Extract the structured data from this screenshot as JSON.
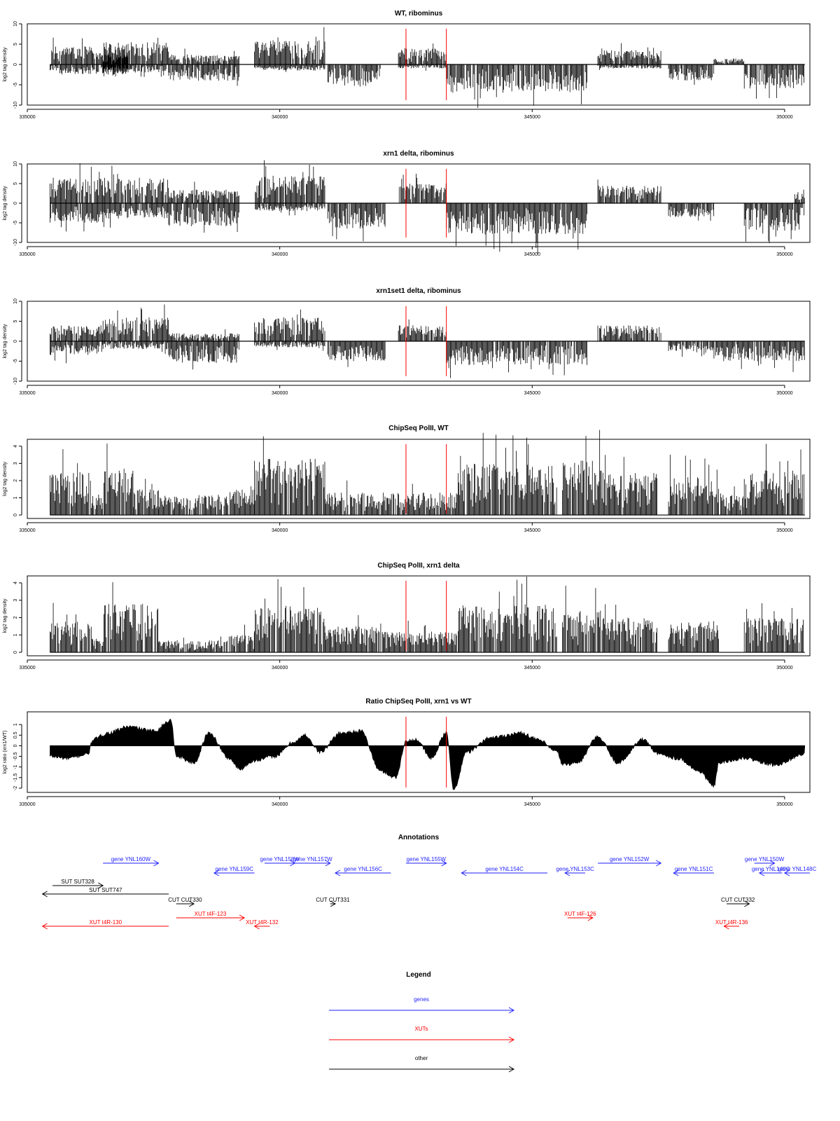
{
  "chart_data": [
    {
      "type": "bar",
      "title": "WT, ribominus",
      "ylabel": "log2 tag density",
      "xlim": [
        335000,
        350500
      ],
      "ylim": [
        -10,
        10
      ],
      "xticks": [
        335000,
        340000,
        345000,
        350000
      ],
      "yticks": [
        -10,
        -5,
        0,
        5,
        10
      ],
      "vlines": [
        342500,
        343300
      ],
      "blocks": [
        {
          "start": 335450,
          "end": 336300,
          "sign": 1,
          "amp": 4.5
        },
        {
          "start": 335450,
          "end": 336300,
          "sign": -1,
          "amp": 2.5
        },
        {
          "start": 336300,
          "end": 337000,
          "sign": 1,
          "amp": 3
        },
        {
          "start": 336300,
          "end": 337000,
          "sign": -1,
          "amp": 2.5
        },
        {
          "start": 336500,
          "end": 337800,
          "sign": 1,
          "amp": 5.5
        },
        {
          "start": 336500,
          "end": 337800,
          "sign": -1,
          "amp": 2
        },
        {
          "start": 337800,
          "end": 339200,
          "sign": 1,
          "amp": 2.5
        },
        {
          "start": 337800,
          "end": 339200,
          "sign": -1,
          "amp": 4
        },
        {
          "start": 339500,
          "end": 340900,
          "sign": 1,
          "amp": 6
        },
        {
          "start": 339500,
          "end": 340900,
          "sign": -1,
          "amp": 1.5
        },
        {
          "start": 340950,
          "end": 342000,
          "sign": -1,
          "amp": 5.5
        },
        {
          "start": 342350,
          "end": 343300,
          "sign": 1,
          "amp": 4
        },
        {
          "start": 342350,
          "end": 343300,
          "sign": -1,
          "amp": 1
        },
        {
          "start": 343300,
          "end": 346100,
          "sign": -1,
          "amp": 7
        },
        {
          "start": 346300,
          "end": 347550,
          "sign": 1,
          "amp": 3.5
        },
        {
          "start": 346300,
          "end": 347550,
          "sign": -1,
          "amp": 1
        },
        {
          "start": 347700,
          "end": 348600,
          "sign": -1,
          "amp": 4
        },
        {
          "start": 348600,
          "end": 349200,
          "sign": 1,
          "amp": 1.5
        },
        {
          "start": 349200,
          "end": 350400,
          "sign": -1,
          "amp": 6
        }
      ]
    },
    {
      "type": "bar",
      "title": "xrn1 delta, ribominus",
      "ylabel": "log2 tag density",
      "xlim": [
        335000,
        350500
      ],
      "ylim": [
        -10,
        10
      ],
      "xticks": [
        335000,
        340000,
        345000,
        350000
      ],
      "yticks": [
        -10,
        -5,
        0,
        5,
        10
      ],
      "vlines": [
        342500,
        343300
      ],
      "blocks": [
        {
          "start": 335450,
          "end": 336500,
          "sign": 1,
          "amp": 6.5
        },
        {
          "start": 335450,
          "end": 336500,
          "sign": -1,
          "amp": 5
        },
        {
          "start": 336500,
          "end": 337800,
          "sign": 1,
          "amp": 6.5
        },
        {
          "start": 336500,
          "end": 337800,
          "sign": -1,
          "amp": 4
        },
        {
          "start": 337800,
          "end": 339200,
          "sign": 1,
          "amp": 3.5
        },
        {
          "start": 337800,
          "end": 339200,
          "sign": -1,
          "amp": 6
        },
        {
          "start": 339500,
          "end": 340900,
          "sign": 1,
          "amp": 7
        },
        {
          "start": 339500,
          "end": 340900,
          "sign": -1,
          "amp": 2
        },
        {
          "start": 340950,
          "end": 342100,
          "sign": -1,
          "amp": 6.5
        },
        {
          "start": 342350,
          "end": 343300,
          "sign": 1,
          "amp": 5
        },
        {
          "start": 343300,
          "end": 346100,
          "sign": -1,
          "amp": 8
        },
        {
          "start": 346300,
          "end": 347550,
          "sign": 1,
          "amp": 4.5
        },
        {
          "start": 347700,
          "end": 348600,
          "sign": -1,
          "amp": 3.5
        },
        {
          "start": 349200,
          "end": 350400,
          "sign": -1,
          "amp": 7
        },
        {
          "start": 350200,
          "end": 350400,
          "sign": 1,
          "amp": 2.5
        }
      ]
    },
    {
      "type": "bar",
      "title": "xrn1set1 delta, ribominus",
      "ylabel": "log2 tag density",
      "xlim": [
        335000,
        350500
      ],
      "ylim": [
        -10,
        10
      ],
      "xticks": [
        335000,
        340000,
        345000,
        350000
      ],
      "yticks": [
        -10,
        -5,
        0,
        5,
        10
      ],
      "vlines": [
        342500,
        343300
      ],
      "blocks": [
        {
          "start": 335450,
          "end": 336500,
          "sign": 1,
          "amp": 4
        },
        {
          "start": 335450,
          "end": 336500,
          "sign": -1,
          "amp": 3.5
        },
        {
          "start": 336500,
          "end": 337800,
          "sign": 1,
          "amp": 6
        },
        {
          "start": 336500,
          "end": 337800,
          "sign": -1,
          "amp": 2
        },
        {
          "start": 337800,
          "end": 339200,
          "sign": 1,
          "amp": 2
        },
        {
          "start": 337800,
          "end": 339200,
          "sign": -1,
          "amp": 5.5
        },
        {
          "start": 339500,
          "end": 340900,
          "sign": 1,
          "amp": 6
        },
        {
          "start": 339500,
          "end": 340900,
          "sign": -1,
          "amp": 1.5
        },
        {
          "start": 340950,
          "end": 342100,
          "sign": -1,
          "amp": 5
        },
        {
          "start": 342350,
          "end": 343300,
          "sign": 1,
          "amp": 4
        },
        {
          "start": 343300,
          "end": 346100,
          "sign": -1,
          "amp": 6
        },
        {
          "start": 346300,
          "end": 347550,
          "sign": 1,
          "amp": 4
        },
        {
          "start": 347700,
          "end": 348600,
          "sign": -1,
          "amp": 2.5
        },
        {
          "start": 348600,
          "end": 350400,
          "sign": -1,
          "amp": 5
        }
      ]
    },
    {
      "type": "bar",
      "title": "ChipSeq PolII, WT",
      "ylabel": "log2 tag density",
      "xlim": [
        335000,
        350500
      ],
      "ylim": [
        -0.2,
        4.4
      ],
      "xticks": [
        335000,
        340000,
        345000,
        350000
      ],
      "yticks": [
        0,
        1,
        2,
        3,
        4
      ],
      "vlines": [
        342500,
        343300
      ],
      "blocks": [
        {
          "start": 335450,
          "end": 336300,
          "sign": 1,
          "amp": 2.5
        },
        {
          "start": 336300,
          "end": 336500,
          "sign": 1,
          "amp": 1.2
        },
        {
          "start": 336500,
          "end": 337100,
          "sign": 1,
          "amp": 2.7
        },
        {
          "start": 337100,
          "end": 337600,
          "sign": 1,
          "amp": 1.5
        },
        {
          "start": 337600,
          "end": 339000,
          "sign": 1,
          "amp": 1.2
        },
        {
          "start": 339000,
          "end": 339500,
          "sign": 1,
          "amp": 1.5
        },
        {
          "start": 339500,
          "end": 340900,
          "sign": 1,
          "amp": 3.3
        },
        {
          "start": 340900,
          "end": 343500,
          "sign": 1,
          "amp": 1.3
        },
        {
          "start": 343500,
          "end": 345500,
          "sign": 1,
          "amp": 3
        },
        {
          "start": 345600,
          "end": 346400,
          "sign": 1,
          "amp": 3.2
        },
        {
          "start": 346400,
          "end": 347500,
          "sign": 1,
          "amp": 2.5
        },
        {
          "start": 347700,
          "end": 348700,
          "sign": 1,
          "amp": 2.3
        },
        {
          "start": 348700,
          "end": 349200,
          "sign": 1,
          "amp": 1.3
        },
        {
          "start": 349200,
          "end": 350400,
          "sign": 1,
          "amp": 2.6
        }
      ]
    },
    {
      "type": "bar",
      "title": "ChipSeq PolII, xrn1 delta",
      "ylabel": "log2 tag density",
      "xlim": [
        335000,
        350500
      ],
      "ylim": [
        -0.2,
        4.4
      ],
      "xticks": [
        335000,
        340000,
        345000,
        350000
      ],
      "yticks": [
        0,
        1,
        2,
        3,
        4
      ],
      "vlines": [
        342500,
        343300
      ],
      "blocks": [
        {
          "start": 335450,
          "end": 336300,
          "sign": 1,
          "amp": 1.8
        },
        {
          "start": 336300,
          "end": 336500,
          "sign": 1,
          "amp": 0.8
        },
        {
          "start": 336500,
          "end": 337600,
          "sign": 1,
          "amp": 2.8
        },
        {
          "start": 337600,
          "end": 339000,
          "sign": 1,
          "amp": 0.7
        },
        {
          "start": 339000,
          "end": 339500,
          "sign": 1,
          "amp": 1
        },
        {
          "start": 339500,
          "end": 340900,
          "sign": 1,
          "amp": 2.7
        },
        {
          "start": 340900,
          "end": 342000,
          "sign": 1,
          "amp": 1.5
        },
        {
          "start": 342000,
          "end": 343500,
          "sign": 1,
          "amp": 1.2
        },
        {
          "start": 343500,
          "end": 345500,
          "sign": 1,
          "amp": 2.8
        },
        {
          "start": 345600,
          "end": 346400,
          "sign": 1,
          "amp": 2.4
        },
        {
          "start": 346400,
          "end": 347500,
          "sign": 1,
          "amp": 2
        },
        {
          "start": 347700,
          "end": 348700,
          "sign": 1,
          "amp": 1.8
        },
        {
          "start": 349200,
          "end": 350400,
          "sign": 1,
          "amp": 2
        }
      ]
    },
    {
      "type": "area",
      "title": "Ratio ChipSeq PolII, xrn1 vs WT",
      "ylabel": "log2 ratio (xrn1/WT)",
      "xlim": [
        335000,
        350500
      ],
      "ylim": [
        -2.2,
        1.6
      ],
      "xticks": [
        335000,
        340000,
        345000,
        350000
      ],
      "yticks": [
        -2.0,
        -1.5,
        -1.0,
        -0.5,
        0.0,
        0.5,
        1.0
      ],
      "vlines": [
        342500,
        343300
      ],
      "x": [
        335450,
        335800,
        336200,
        336300,
        336600,
        337000,
        337500,
        337850,
        337950,
        338300,
        338600,
        339000,
        339200,
        339500,
        339900,
        340300,
        340500,
        340800,
        341200,
        341600,
        342000,
        342300,
        342500,
        342700,
        343000,
        343300,
        343450,
        343700,
        344200,
        344800,
        345100,
        345500,
        345600,
        345900,
        346300,
        346700,
        347200,
        347500,
        347900,
        348300,
        348600,
        348700,
        349200,
        349800,
        350400
      ],
      "y": [
        -0.5,
        -0.6,
        -0.4,
        0.3,
        0.6,
        0.9,
        0.7,
        1.2,
        -0.5,
        -0.8,
        0.6,
        -0.6,
        -1.1,
        -0.7,
        -0.5,
        0.2,
        0.5,
        -0.3,
        0.6,
        0.7,
        -1.2,
        -1.5,
        0.2,
        0.3,
        -0.6,
        0.6,
        -2.1,
        -0.3,
        0.4,
        0.6,
        0.3,
        -0.3,
        -0.9,
        -0.8,
        0.4,
        -0.8,
        0.3,
        -0.4,
        -0.6,
        -1.2,
        -1.9,
        -0.8,
        -0.6,
        -0.9,
        -0.4
      ]
    }
  ],
  "annotations": {
    "title": "Annotations",
    "xlim": [
      335000,
      350500
    ],
    "features": [
      {
        "label": "gene YNL160W",
        "kind": "gene",
        "start": 336500,
        "end": 337600,
        "row": 0
      },
      {
        "label": "gene YNL159C",
        "kind": "gene",
        "start": 338700,
        "end": 339500,
        "row": 1
      },
      {
        "label": "gene YNL158W",
        "kind": "gene",
        "start": 339700,
        "end": 340300,
        "row": 0
      },
      {
        "label": "gene YNL157W",
        "kind": "gene",
        "start": 340300,
        "end": 341000,
        "row": 0
      },
      {
        "label": "gene YNL156C",
        "kind": "gene",
        "start": 341100,
        "end": 342200,
        "row": 1
      },
      {
        "label": "gene YNL155W",
        "kind": "gene",
        "start": 342500,
        "end": 343300,
        "row": 0
      },
      {
        "label": "gene YNL154C",
        "kind": "gene",
        "start": 343600,
        "end": 345300,
        "row": 1
      },
      {
        "label": "gene YNL153C",
        "kind": "gene",
        "start": 345650,
        "end": 346050,
        "row": 1
      },
      {
        "label": "gene YNL152W",
        "kind": "gene",
        "start": 346300,
        "end": 347550,
        "row": 0
      },
      {
        "label": "gene YNL151C",
        "kind": "gene",
        "start": 347800,
        "end": 348600,
        "row": 1
      },
      {
        "label": "gene YNL150W",
        "kind": "gene",
        "start": 349400,
        "end": 349800,
        "row": 0
      },
      {
        "label": "gene YNL149C",
        "kind": "gene",
        "start": 349500,
        "end": 349950,
        "row": 1
      },
      {
        "label": "gene YNL148C",
        "kind": "gene",
        "start": 350000,
        "end": 350500,
        "row": 1
      },
      {
        "label": "SUT SUT328",
        "kind": "other",
        "start": 335500,
        "end": 336500,
        "row": 2
      },
      {
        "label": "SUT SUT747",
        "kind": "other",
        "start": 335300,
        "end": 337800,
        "row": 3
      },
      {
        "label": "CUT CUT330",
        "kind": "other",
        "start": 337950,
        "end": 338300,
        "row": 4
      },
      {
        "label": "CUT CUT331",
        "kind": "other",
        "start": 341000,
        "end": 341100,
        "row": 4
      },
      {
        "label": "CUT CUT332",
        "kind": "other",
        "start": 348850,
        "end": 349300,
        "row": 4
      },
      {
        "label": "XUT t4R-130",
        "kind": "xut",
        "start": 335300,
        "end": 337800,
        "row": 6
      },
      {
        "label": "XUT t4F-123",
        "kind": "xut",
        "start": 337950,
        "end": 339300,
        "row": 5
      },
      {
        "label": "XUT t4R-132",
        "kind": "xut",
        "start": 339500,
        "end": 339800,
        "row": 6
      },
      {
        "label": "XUT t4F-126",
        "kind": "xut",
        "start": 345700,
        "end": 346200,
        "row": 5
      },
      {
        "label": "XUT t4R-136",
        "kind": "xut",
        "start": 348800,
        "end": 349100,
        "row": 6
      }
    ]
  },
  "legend": {
    "title": "Legend",
    "items": [
      {
        "label": "genes",
        "kind": "gene"
      },
      {
        "label": "XUTs",
        "kind": "xut"
      },
      {
        "label": "other",
        "kind": "other"
      }
    ]
  },
  "colors": {
    "gene": "#1f1fff",
    "xut": "#ff0000",
    "other": "#000000",
    "marker": "#ff0000",
    "data": "#000000"
  }
}
